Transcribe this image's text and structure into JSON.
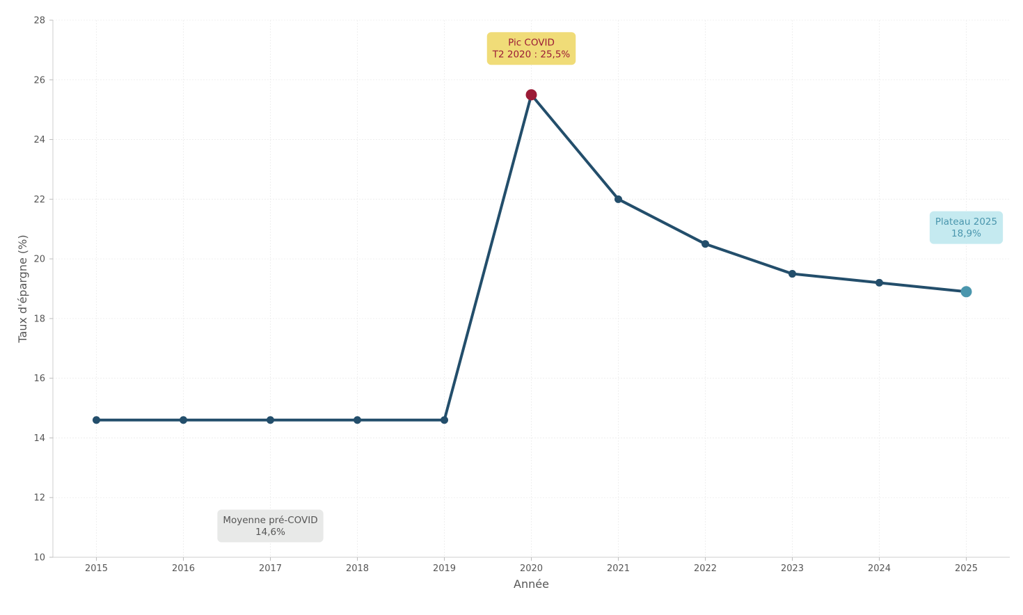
{
  "chart_data": {
    "type": "line",
    "title": "",
    "xlabel": "Année",
    "ylabel": "Taux d'épargne (%)",
    "x": [
      2015,
      2016,
      2017,
      2018,
      2019,
      2020,
      2021,
      2022,
      2023,
      2024,
      2025
    ],
    "x_tick_labels": [
      "2015",
      "2016",
      "2017",
      "2018",
      "2019",
      "2020",
      "2021",
      "2022",
      "2023",
      "2024",
      "2025"
    ],
    "y_ticks": [
      10,
      12,
      14,
      16,
      18,
      20,
      22,
      24,
      26,
      28
    ],
    "y_tick_labels": [
      "10",
      "12",
      "14",
      "16",
      "18",
      "20",
      "22",
      "24",
      "26",
      "28"
    ],
    "ylim": [
      10,
      28
    ],
    "xlim": [
      2014.5,
      2025.5
    ],
    "grid": true,
    "series": [
      {
        "values": [
          14.6,
          14.6,
          14.6,
          14.6,
          14.6,
          25.5,
          22.0,
          20.5,
          19.5,
          19.2,
          18.9
        ],
        "color": "#234e6b"
      }
    ],
    "highlights": [
      {
        "x": 2020,
        "y": 25.5,
        "color": "#9b1b36"
      },
      {
        "x": 2025,
        "y": 18.9,
        "color": "#4a96ad"
      }
    ],
    "annotations": [
      {
        "lines": [
          "Pic COVID",
          "T2 2020 : 25,5%"
        ],
        "x": 2020,
        "y": 27.05,
        "bg": "#f0dc78",
        "fg": "#9b1b36"
      },
      {
        "lines": [
          "Plateau 2025",
          "18,9%"
        ],
        "x": 2025,
        "y": 21.05,
        "bg": "#c5eaf0",
        "fg": "#4a96ad"
      },
      {
        "lines": [
          "Moyenne pré-COVID",
          "14,6%"
        ],
        "x": 2017,
        "y": 11.05,
        "bg": "#e8e9e8",
        "fg": "#555555"
      }
    ]
  }
}
